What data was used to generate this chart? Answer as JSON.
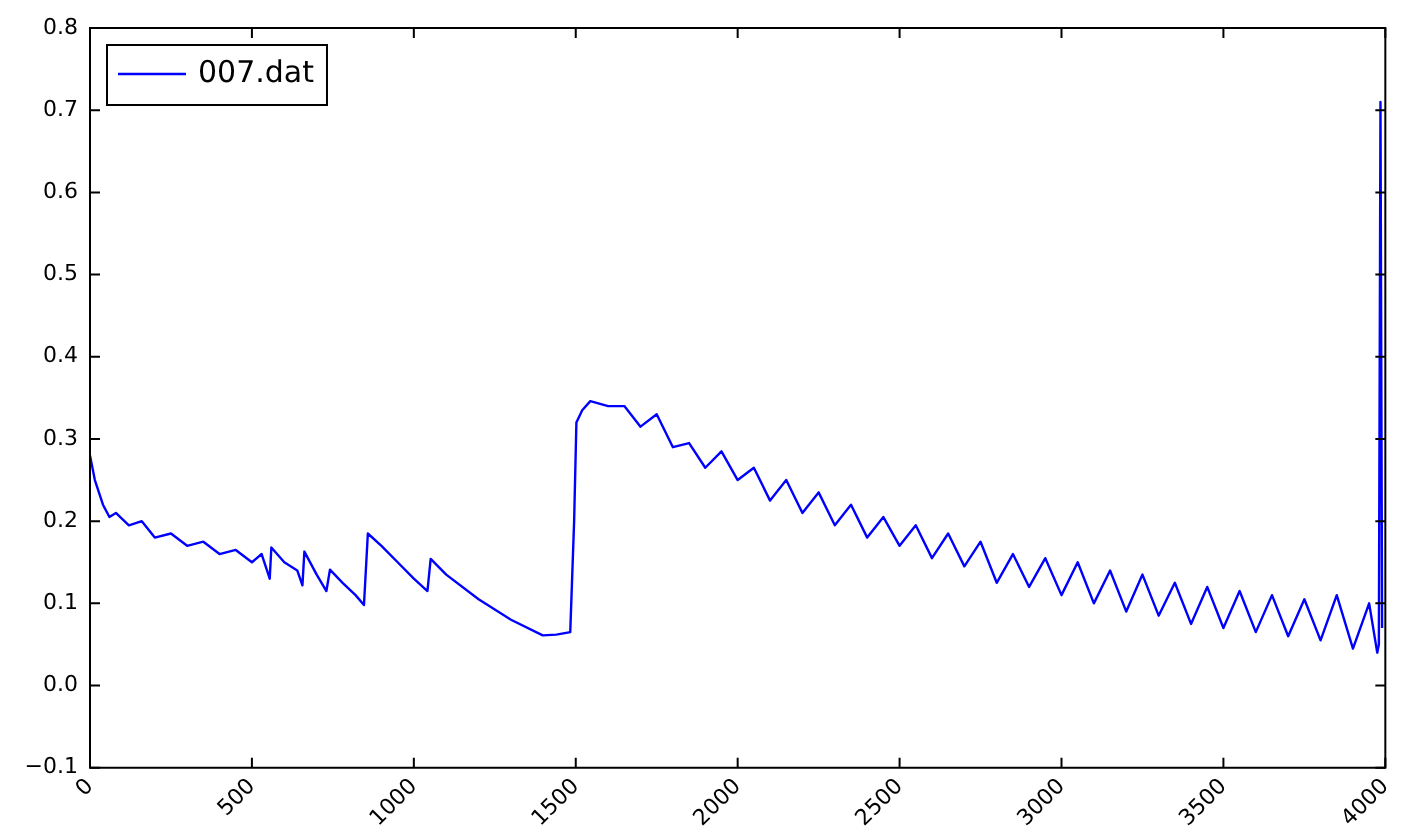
{
  "chart_data": {
    "type": "line",
    "legend": "top left",
    "grid": false,
    "marker": "none",
    "line_style": "solid",
    "xlim": [
      0,
      4000
    ],
    "xticks": [
      0,
      500,
      1000,
      1500,
      2000,
      2500,
      3000,
      3500,
      4000
    ],
    "ylim": [
      -0.1,
      0.8
    ],
    "yticks": [
      {
        "value": -0.1,
        "label": "−0.1"
      },
      {
        "value": 0,
        "label": "0.0"
      },
      0.1,
      0.2,
      0.3,
      0.4,
      0.5,
      0.6,
      0.7,
      0.8
    ],
    "series": [
      {
        "name": "007.dat",
        "color": "#0000ff",
        "x": [
          0,
          15,
          40,
          60,
          80,
          120,
          160,
          200,
          250,
          300,
          350,
          400,
          450,
          500,
          530,
          555,
          560,
          600,
          640,
          656,
          662,
          700,
          730,
          741,
          780,
          820,
          846,
          858,
          900,
          950,
          1000,
          1042,
          1052,
          1100,
          1200,
          1300,
          1398,
          1440,
          1483,
          1495,
          1502,
          1520,
          1545,
          1600,
          1650,
          1700,
          1750,
          1800,
          1850,
          1900,
          1950,
          2000,
          2050,
          2100,
          2150,
          2200,
          2250,
          2300,
          2350,
          2400,
          2450,
          2500,
          2550,
          2600,
          2650,
          2700,
          2750,
          2800,
          2850,
          2900,
          2950,
          3000,
          3050,
          3100,
          3150,
          3200,
          3250,
          3300,
          3350,
          3400,
          3450,
          3500,
          3550,
          3600,
          3650,
          3700,
          3750,
          3800,
          3850,
          3900,
          3950,
          3975,
          3980,
          3985,
          3990
        ],
        "values": [
          0.28,
          0.25,
          0.22,
          0.205,
          0.21,
          0.195,
          0.2,
          0.18,
          0.185,
          0.17,
          0.175,
          0.16,
          0.165,
          0.15,
          0.16,
          0.13,
          0.168,
          0.15,
          0.14,
          0.122,
          0.163,
          0.135,
          0.115,
          0.141,
          0.125,
          0.11,
          0.098,
          0.185,
          0.17,
          0.15,
          0.13,
          0.115,
          0.154,
          0.135,
          0.105,
          0.08,
          0.061,
          0.062,
          0.065,
          0.2,
          0.32,
          0.335,
          0.346,
          0.34,
          0.34,
          0.315,
          0.33,
          0.29,
          0.295,
          0.265,
          0.285,
          0.25,
          0.265,
          0.225,
          0.25,
          0.21,
          0.235,
          0.195,
          0.22,
          0.18,
          0.205,
          0.17,
          0.195,
          0.155,
          0.185,
          0.145,
          0.175,
          0.125,
          0.16,
          0.12,
          0.155,
          0.11,
          0.15,
          0.1,
          0.14,
          0.09,
          0.135,
          0.085,
          0.125,
          0.075,
          0.12,
          0.07,
          0.115,
          0.065,
          0.11,
          0.06,
          0.105,
          0.055,
          0.11,
          0.045,
          0.1,
          0.04,
          0.05,
          0.71,
          0.07
        ]
      }
    ]
  }
}
